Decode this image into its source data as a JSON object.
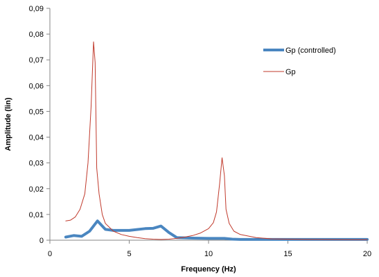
{
  "chart_data": {
    "type": "line",
    "title": "",
    "xlabel": "Frequency (Hz)",
    "ylabel": "Amplitude (lin)",
    "xlim": [
      0,
      20
    ],
    "ylim": [
      0,
      0.09
    ],
    "x_ticks": [
      0,
      5,
      10,
      15,
      20
    ],
    "x_tick_labels": [
      "0",
      "5",
      "10",
      "15",
      "20"
    ],
    "y_ticks": [
      0,
      0.01,
      0.02,
      0.03,
      0.04,
      0.05,
      0.06,
      0.07,
      0.08,
      0.09
    ],
    "y_tick_labels": [
      "0",
      "0,01",
      "0,02",
      "0,03",
      "0,04",
      "0,05",
      "0,06",
      "0,07",
      "0,08",
      "0,09"
    ],
    "grid": false,
    "legend": "right",
    "series": [
      {
        "name": "Gp (controlled)",
        "color": "#4a86c0",
        "points": [
          [
            1,
            0.0012
          ],
          [
            1.5,
            0.0018
          ],
          [
            2,
            0.0015
          ],
          [
            2.5,
            0.0035
          ],
          [
            3,
            0.0075
          ],
          [
            3.5,
            0.0042
          ],
          [
            4,
            0.0038
          ],
          [
            5,
            0.0038
          ],
          [
            6,
            0.0045
          ],
          [
            6.5,
            0.0046
          ],
          [
            7,
            0.0055
          ],
          [
            7.5,
            0.003
          ],
          [
            8,
            0.001
          ],
          [
            9,
            0.0008
          ],
          [
            10,
            0.0007
          ],
          [
            11,
            0.0007
          ],
          [
            11.5,
            0.0004
          ],
          [
            12,
            0.0003
          ],
          [
            13,
            0.0003
          ],
          [
            15,
            0.0003
          ],
          [
            20,
            0.0003
          ]
        ]
      },
      {
        "name": "Gp",
        "color": "#c0392b",
        "points": [
          [
            1,
            0.0075
          ],
          [
            1.3,
            0.0078
          ],
          [
            1.6,
            0.009
          ],
          [
            1.9,
            0.012
          ],
          [
            2.2,
            0.018
          ],
          [
            2.4,
            0.03
          ],
          [
            2.6,
            0.052
          ],
          [
            2.75,
            0.077
          ],
          [
            2.85,
            0.069
          ],
          [
            2.95,
            0.028
          ],
          [
            3.1,
            0.018
          ],
          [
            3.3,
            0.01
          ],
          [
            3.5,
            0.0065
          ],
          [
            4,
            0.0035
          ],
          [
            4.5,
            0.0022
          ],
          [
            5,
            0.0015
          ],
          [
            5.5,
            0.001
          ],
          [
            6,
            0.0006
          ],
          [
            6.5,
            0.0004
          ],
          [
            7,
            0.0003
          ],
          [
            7.5,
            0.0004
          ],
          [
            8,
            0.0007
          ],
          [
            8.5,
            0.0012
          ],
          [
            9,
            0.0018
          ],
          [
            9.5,
            0.0028
          ],
          [
            10,
            0.0045
          ],
          [
            10.3,
            0.0068
          ],
          [
            10.5,
            0.011
          ],
          [
            10.7,
            0.022
          ],
          [
            10.85,
            0.032
          ],
          [
            11,
            0.025
          ],
          [
            11.1,
            0.012
          ],
          [
            11.3,
            0.0065
          ],
          [
            11.6,
            0.0035
          ],
          [
            12,
            0.0022
          ],
          [
            13,
            0.001
          ],
          [
            14,
            0.0005
          ],
          [
            16,
            0.0003
          ],
          [
            20,
            0.0002
          ]
        ]
      }
    ]
  }
}
